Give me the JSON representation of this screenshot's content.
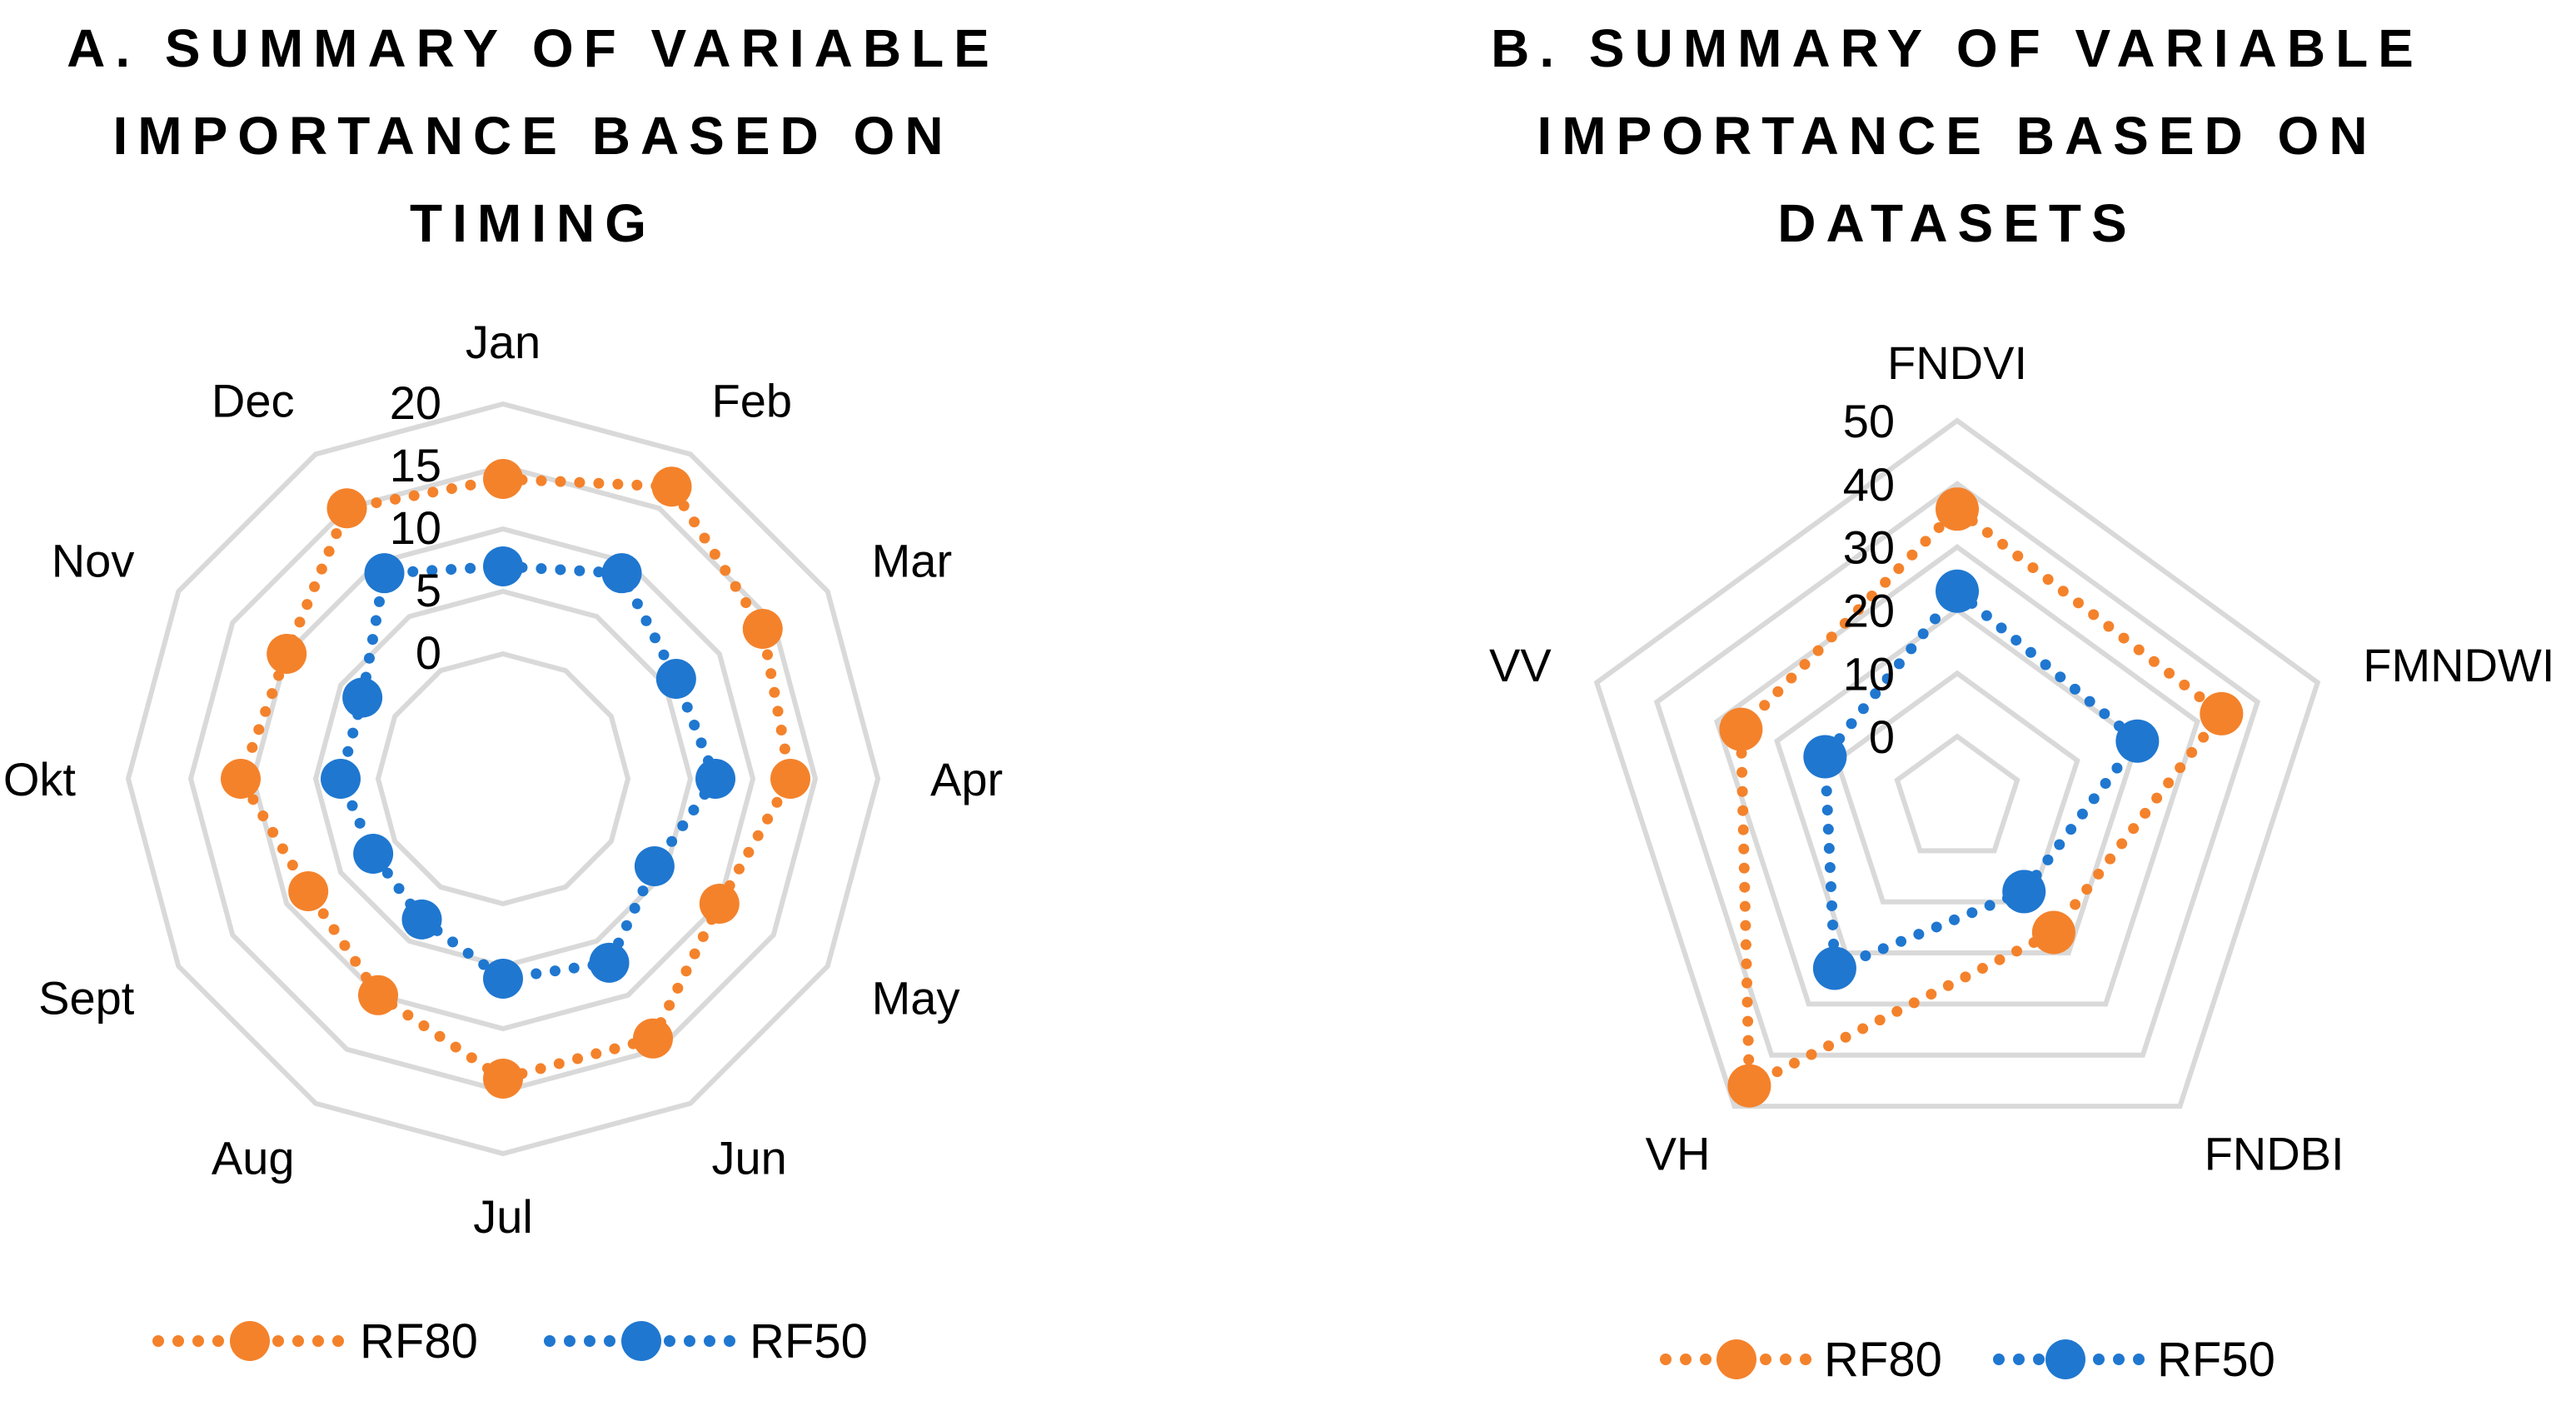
{
  "colors": {
    "rf80": "#F4822B",
    "rf50": "#1F77D0",
    "grid": "#D9D9D9"
  },
  "chart_data": [
    {
      "type": "radar",
      "title_lines": [
        "A. SUMMARY OF VARIABLE",
        "IMPORTANCE BASED ON",
        "TIMING"
      ],
      "categories": [
        "Jan",
        "Feb",
        "Mar",
        "Apr",
        "May",
        "Jun",
        "Jul",
        "Aug",
        "Sept",
        "Okt",
        "Nov",
        "Dec"
      ],
      "ticks": [
        "0",
        "5",
        "10",
        "15",
        "20"
      ],
      "range": [
        -10,
        20
      ],
      "series": [
        {
          "name": "RF80",
          "values": [
            14,
            17,
            14,
            13,
            10,
            14,
            14,
            10,
            8,
            11,
            10,
            15
          ]
        },
        {
          "name": "RF50",
          "values": [
            7,
            9,
            6,
            7,
            4,
            7,
            6,
            3,
            2,
            3,
            3,
            9
          ]
        }
      ],
      "legend": [
        "RF80",
        "RF50"
      ]
    },
    {
      "type": "radar",
      "title_lines": [
        "B. SUMMARY OF VARIABLE",
        "IMPORTANCE BASED ON",
        "DATASETS"
      ],
      "categories": [
        "FNDVI",
        "FMNDWI",
        "FNDBI",
        "VH",
        "VV"
      ],
      "ticks": [
        "0",
        "10",
        "20",
        "30",
        "40",
        "50"
      ],
      "range": [
        -10,
        50
      ],
      "series": [
        {
          "name": "RF80",
          "values": [
            36,
            34,
            16,
            46,
            26
          ]
        },
        {
          "name": "RF50",
          "values": [
            23,
            20,
            8,
            23,
            12
          ]
        }
      ],
      "legend": [
        "RF80",
        "RF50"
      ]
    }
  ]
}
